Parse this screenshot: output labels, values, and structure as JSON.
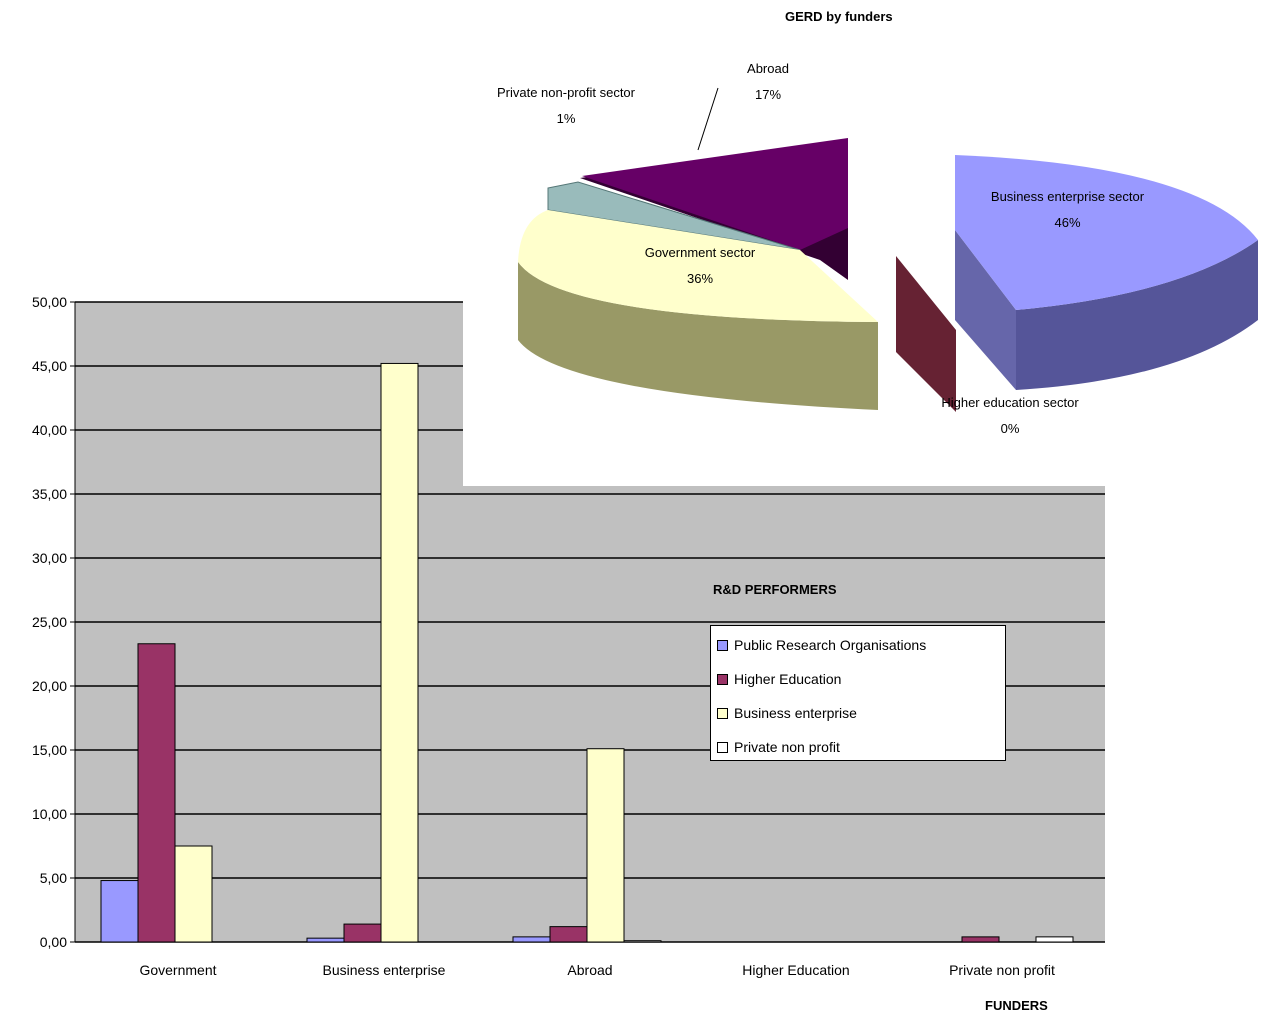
{
  "chart_data": [
    {
      "type": "bar",
      "title": "R&D PERFORMERS",
      "xlabel": "FUNDERS",
      "ylabel": "",
      "ylim": [
        0,
        50
      ],
      "y_ticks": [
        "0,00",
        "5,00",
        "10,00",
        "15,00",
        "20,00",
        "25,00",
        "30,00",
        "35,00",
        "40,00",
        "45,00",
        "50,00"
      ],
      "categories": [
        "Government",
        "Business enterprise",
        "Abroad",
        "Higher Education",
        "Private non profit"
      ],
      "series": [
        {
          "name": "Public Research Organisations",
          "color": "#9999ff",
          "values": [
            4.8,
            0.3,
            0.4,
            0.0,
            0.0
          ]
        },
        {
          "name": "Higher Education",
          "color": "#993366",
          "values": [
            23.3,
            1.4,
            1.2,
            0.0,
            0.4
          ]
        },
        {
          "name": "Business enterprise",
          "color": "#ffffcc",
          "values": [
            7.5,
            45.2,
            15.1,
            0.0,
            0.0
          ]
        },
        {
          "name": "Private non profit",
          "color": "#ffffff",
          "values": [
            0.0,
            0.0,
            0.1,
            0.0,
            0.4
          ]
        }
      ],
      "plot_background": "#c0c0c0",
      "legend_position": "right"
    },
    {
      "type": "pie",
      "title": "GERD by funders",
      "slices": [
        {
          "label": "Business enterprise sector",
          "value": 46,
          "pct": "46%",
          "color": "#9999ff"
        },
        {
          "label": "Higher education sector",
          "value": 0,
          "pct": "0%",
          "color": "#993366"
        },
        {
          "label": "Government sector",
          "value": 36,
          "pct": "36%",
          "color": "#ffffcc"
        },
        {
          "label": "Private non-profit sector",
          "value": 1,
          "pct": "1%",
          "color": "#99bbbb"
        },
        {
          "label": "Abroad",
          "value": 17,
          "pct": "17%",
          "color": "#660066"
        }
      ]
    }
  ]
}
